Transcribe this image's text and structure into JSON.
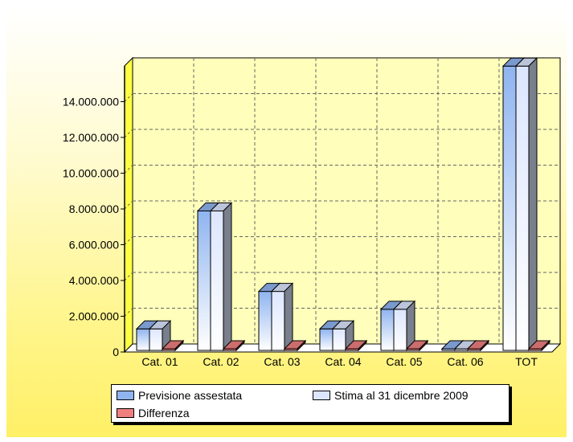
{
  "chart_data": {
    "type": "bar",
    "categories": [
      "Cat. 01",
      "Cat. 02",
      "Cat. 03",
      "Cat. 04",
      "Cat. 05",
      "Cat. 06",
      "TOT"
    ],
    "series": [
      {
        "name": "Previsione assestata",
        "color": "#8fb4f0",
        "values": [
          1200000,
          7800000,
          3300000,
          1200000,
          2300000,
          0,
          15900000
        ]
      },
      {
        "name": "Stima al 31 dicembre 2009",
        "color": "#dce6ff",
        "values": [
          1200000,
          7800000,
          3300000,
          1200000,
          2300000,
          0,
          15900000
        ]
      },
      {
        "name": "Differenza",
        "color": "#f08080",
        "values": [
          0,
          0,
          0,
          0,
          0,
          0,
          0
        ]
      }
    ],
    "yticks": [
      "0",
      "2.000.000",
      "4.000.000",
      "6.000.000",
      "8.000.000",
      "10.000.000",
      "12.000.000",
      "14.000.000"
    ],
    "ylim": [
      0,
      16000000
    ],
    "grid": true,
    "legend": "bottom",
    "title": "",
    "xlabel": "",
    "ylabel": ""
  }
}
